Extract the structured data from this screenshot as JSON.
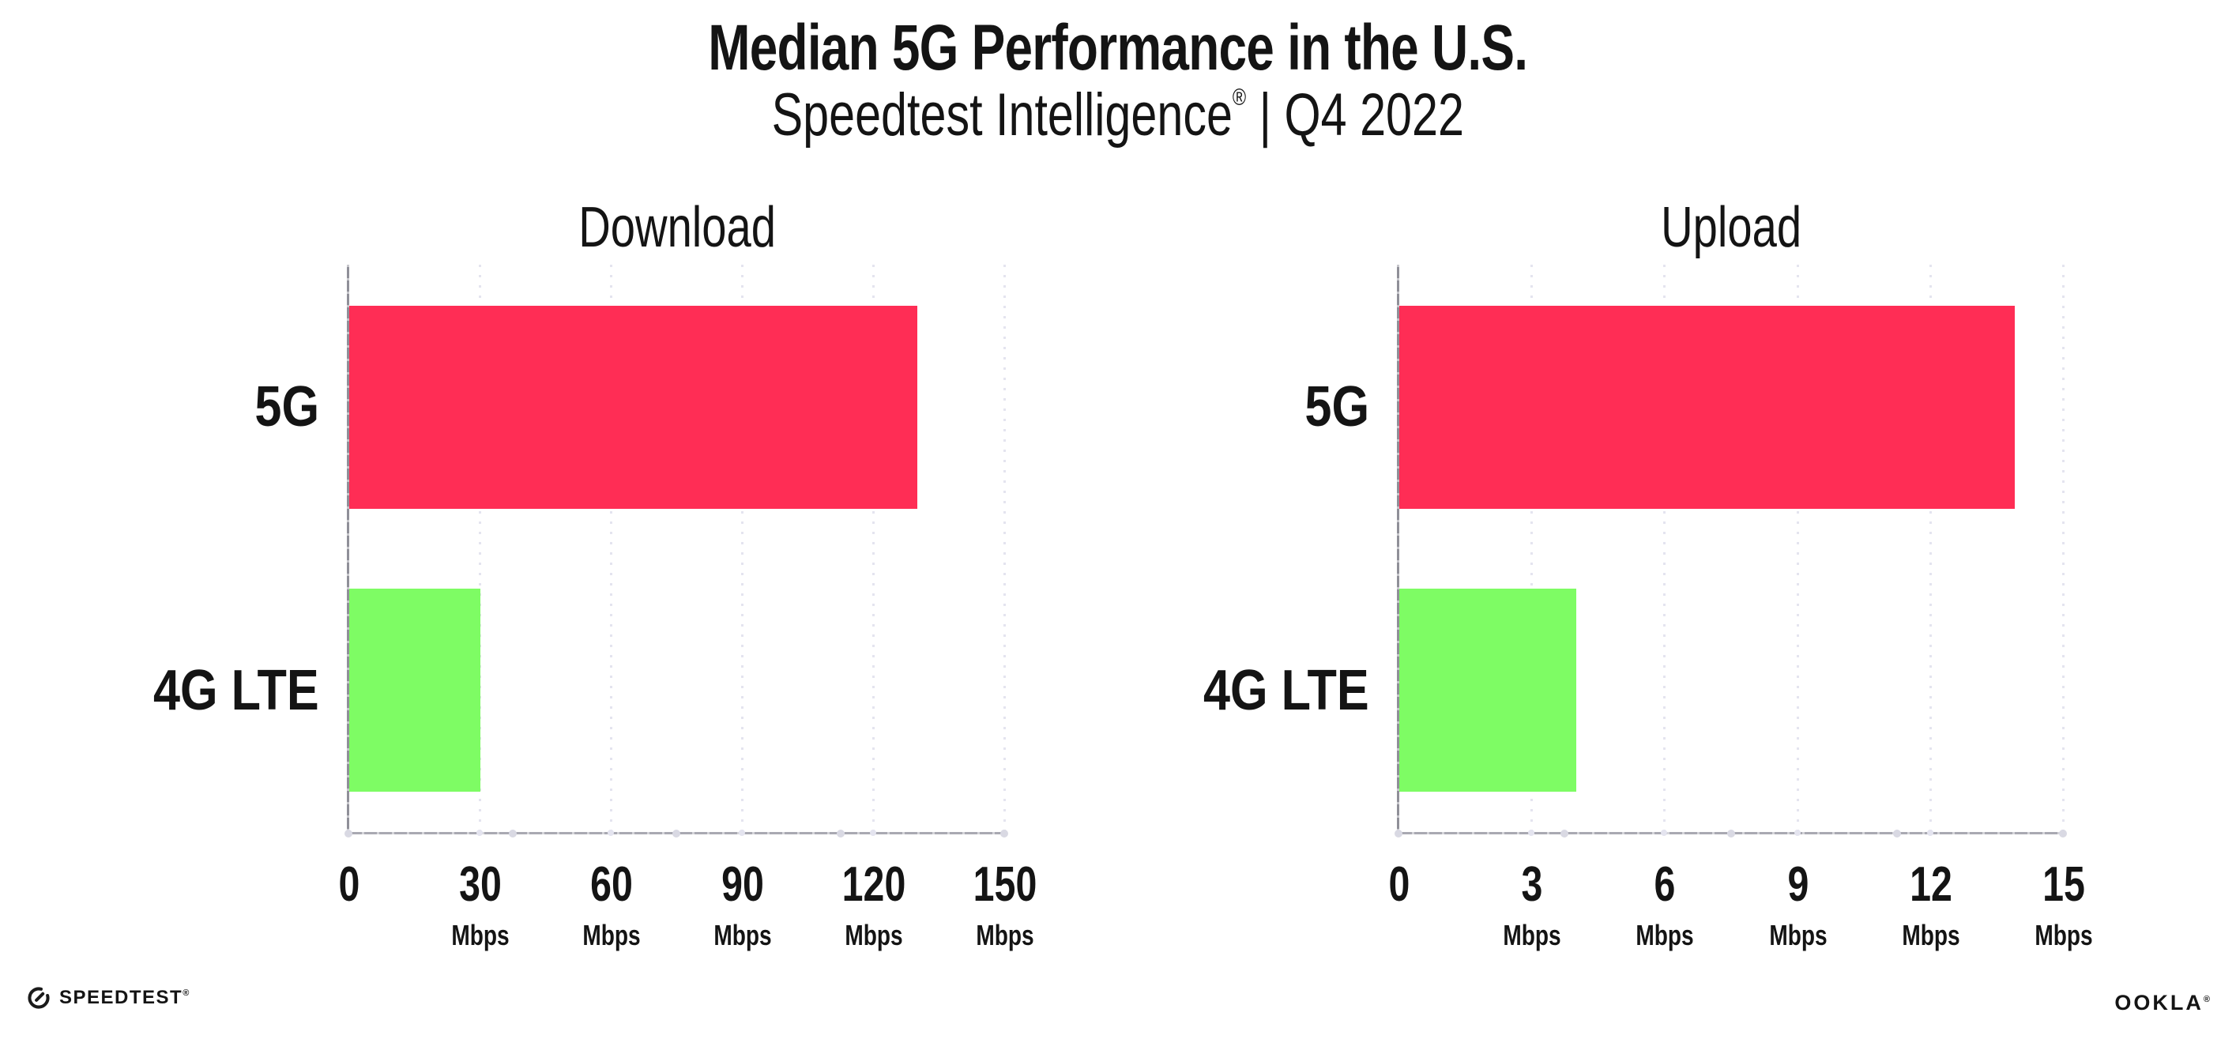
{
  "header": {
    "title": "Median 5G Performance in the U.S.",
    "subtitle": {
      "brand": "Speedtest Intelligence",
      "registered": "®",
      "rest": " | Q4 2022"
    }
  },
  "footer": {
    "speedtest": {
      "label": "SPEEDTEST",
      "mark": "®"
    },
    "ookla": {
      "label": "OOKLA",
      "mark": "®"
    }
  },
  "colors": {
    "bar_5g": "#FF2D55",
    "bar_4g_lte": "#7EFC64",
    "axis_y": "#8F8F98",
    "axis_x": "#A9A9B2",
    "gridline": "#E4E4EF",
    "axis_dot": "#D9D9E3",
    "text": "#141414",
    "background": "#FFFFFF"
  },
  "chart_data": [
    {
      "type": "bar",
      "orientation": "horizontal",
      "title": "Download",
      "categories": [
        "5G",
        "4G LTE"
      ],
      "values": [
        130,
        30
      ],
      "bar_colors": [
        "#FF2D55",
        "#7EFC64"
      ],
      "unit": "Mbps",
      "xlim": [
        0,
        150
      ],
      "xticks": [
        0,
        30,
        60,
        90,
        120,
        150
      ],
      "xtick_unit": "Mbps",
      "unit_on_zero_tick": false,
      "grid": "dotted vertical gridline at each nonzero tick",
      "legend": "none"
    },
    {
      "type": "bar",
      "orientation": "horizontal",
      "title": "Upload",
      "categories": [
        "5G",
        "4G LTE"
      ],
      "values": [
        13.9,
        4
      ],
      "bar_colors": [
        "#FF2D55",
        "#7EFC64"
      ],
      "unit": "Mbps",
      "xlim": [
        0,
        15
      ],
      "xticks": [
        0,
        3,
        6,
        9,
        12,
        15
      ],
      "xtick_unit": "Mbps",
      "unit_on_zero_tick": false,
      "grid": "dotted vertical gridline at each nonzero tick",
      "legend": "none"
    }
  ]
}
